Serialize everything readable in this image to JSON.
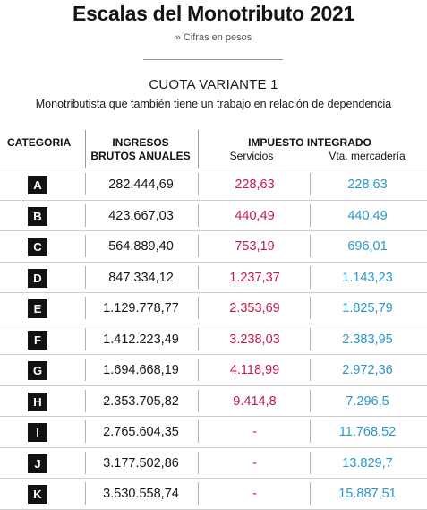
{
  "title": "Escalas del Monotributo 2021",
  "subtitle": "» Cifras en pesos",
  "section_title": "CUOTA VARIANTE 1",
  "description": "Monotributista que también tiene un trabajo en relación de dependencia",
  "headers": {
    "categoria": "CATEGORIA",
    "ingresos_line1": "INGRESOS",
    "ingresos_line2": "BRUTOS ANUALES",
    "impuesto": "IMPUESTO INTEGRADO",
    "servicios": "Servicios",
    "mercaderia": "Vta. mercadería"
  },
  "colors": {
    "servicios": "#bf1d49",
    "mercaderia": "#2a97c9",
    "badge": "#111111"
  },
  "rows": [
    {
      "categoria": "A",
      "ingresos": "282.444,69",
      "servicios": "228,63",
      "mercaderia": "228,63"
    },
    {
      "categoria": "B",
      "ingresos": "423.667,03",
      "servicios": "440,49",
      "mercaderia": "440,49"
    },
    {
      "categoria": "C",
      "ingresos": "564.889,40",
      "servicios": "753,19",
      "mercaderia": "696,01"
    },
    {
      "categoria": "D",
      "ingresos": "847.334,12",
      "servicios": "1.237,37",
      "mercaderia": "1.143,23"
    },
    {
      "categoria": "E",
      "ingresos": "1.129.778,77",
      "servicios": "2.353,69",
      "mercaderia": "1.825,79"
    },
    {
      "categoria": "F",
      "ingresos": "1.412.223,49",
      "servicios": "3.238,03",
      "mercaderia": "2.383,95"
    },
    {
      "categoria": "G",
      "ingresos": "1.694.668,19",
      "servicios": "4.118,99",
      "mercaderia": "2.972,36"
    },
    {
      "categoria": "H",
      "ingresos": "2.353.705,82",
      "servicios": "9.414,8",
      "mercaderia": "7.296,5"
    },
    {
      "categoria": "I",
      "ingresos": "2.765.604,35",
      "servicios": "-",
      "mercaderia": "11.768,52"
    },
    {
      "categoria": "J",
      "ingresos": "3.177.502,86",
      "servicios": "-",
      "mercaderia": "13.829,7"
    },
    {
      "categoria": "K",
      "ingresos": "3.530.558,74",
      "servicios": "-",
      "mercaderia": "15.887,51"
    }
  ]
}
